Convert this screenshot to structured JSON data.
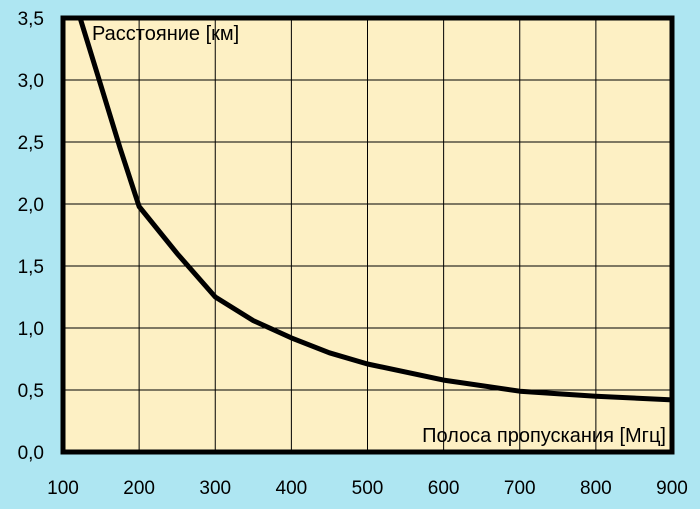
{
  "chart_data": {
    "type": "line",
    "title": "",
    "xlabel": "Полоса пропускания [Мгц]",
    "ylabel": "Расстояние [км]",
    "xlim": [
      100,
      900
    ],
    "ylim": [
      0,
      3.5
    ],
    "x_ticks": [
      100,
      200,
      300,
      400,
      500,
      600,
      700,
      800,
      900
    ],
    "x_tick_labels": [
      "100",
      "200",
      "300",
      "400",
      "500",
      "600",
      "700",
      "800",
      "900"
    ],
    "y_ticks": [
      0,
      0.5,
      1.0,
      1.5,
      2.0,
      2.5,
      3.0,
      3.5
    ],
    "y_tick_labels": [
      "0,0",
      "0,5",
      "1,0",
      "1,5",
      "2,0",
      "2,5",
      "3,0",
      "3,5"
    ],
    "grid": true,
    "colors": {
      "page_background": "#aee6f2",
      "plot_background": "#fdf0c4",
      "grid": "#000000",
      "line": "#000000"
    },
    "series": [
      {
        "x": [
          120,
          150,
          175,
          200,
          250,
          300,
          350,
          400,
          450,
          500,
          600,
          700,
          800,
          900
        ],
        "y": [
          3.55,
          2.95,
          2.45,
          1.98,
          1.6,
          1.25,
          1.06,
          0.92,
          0.8,
          0.71,
          0.58,
          0.49,
          0.45,
          0.42
        ]
      }
    ]
  }
}
